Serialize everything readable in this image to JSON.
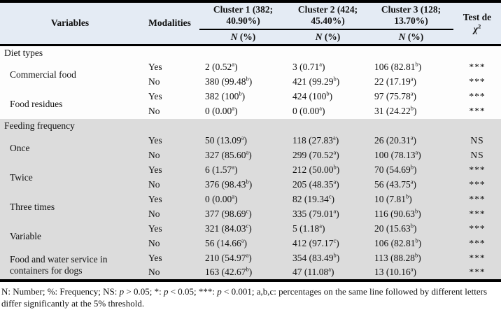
{
  "colors": {
    "header_bg": "#e4ebf4",
    "shaded_section_bg": "#dcdcdc",
    "row_bg": "#fdfdfd",
    "border": "#000000",
    "text": "#111111"
  },
  "table": {
    "header": {
      "variables": "Variables",
      "modalities": "Modalities",
      "clusters": [
        {
          "line1": "Cluster 1 (382;",
          "line2": "40.90%)"
        },
        {
          "line1": "Cluster 2 (424;",
          "line2": "45.40%)"
        },
        {
          "line1": "Cluster 3 (128;",
          "line2": "13.70%)"
        }
      ],
      "n_italic": "N",
      "n_rest": " (%)",
      "test_line1": "Test de",
      "test_chi": "χ",
      "test_chi_sup": "2"
    },
    "sections": [
      {
        "title": "Diet types",
        "shaded": false,
        "variables": [
          {
            "name": "Commercial food",
            "rows": [
              {
                "modality": "Yes",
                "c1": "2 (0.52^a)",
                "c2": "3 (0.71^a)",
                "c3": "106 (82.81^b)",
                "test": "***"
              },
              {
                "modality": "No",
                "c1": "380 (99.48^b)",
                "c2": "421 (99.29^b)",
                "c3": "22 (17.19^a)",
                "test": "***"
              }
            ]
          },
          {
            "name": "Food residues",
            "rows": [
              {
                "modality": "Yes",
                "c1": "382 (100^b)",
                "c2": "424 (100^b)",
                "c3": "97 (75.78^a)",
                "test": "***"
              },
              {
                "modality": "No",
                "c1": "0 (0.00^a)",
                "c2": "0 (0.00^a)",
                "c3": "31 (24.22^b)",
                "test": "***"
              }
            ]
          }
        ]
      },
      {
        "title": "Feeding frequency",
        "shaded": true,
        "variables": [
          {
            "name": "Once",
            "rows": [
              {
                "modality": "Yes",
                "c1": "50 (13.09^a)",
                "c2": "118 (27.83^a)",
                "c3": "26 (20.31^a)",
                "test": "NS"
              },
              {
                "modality": "No",
                "c1": "327 (85.60^a)",
                "c2": "299 (70.52^a)",
                "c3": "100 (78.13^a)",
                "test": "NS"
              }
            ]
          },
          {
            "name": "Twice",
            "rows": [
              {
                "modality": "Yes",
                "c1": "6 (1.57^a)",
                "c2": "212 (50.00^b)",
                "c3": "70 (54.69^b)",
                "test": "***"
              },
              {
                "modality": "No",
                "c1": "376 (98.43^b)",
                "c2": "205 (48.35^a)",
                "c3": "56 (43.75^a)",
                "test": "***"
              }
            ]
          },
          {
            "name": "Three times",
            "rows": [
              {
                "modality": "Yes",
                "c1": "0 (0.00^a)",
                "c2": "82 (19.34^c)",
                "c3": "10 (7.81^b)",
                "test": "***"
              },
              {
                "modality": "No",
                "c1": "377 (98.69^c)",
                "c2": "335 (79.01^a)",
                "c3": "116 (90.63^b)",
                "test": "***"
              }
            ]
          },
          {
            "name": "Variable",
            "rows": [
              {
                "modality": "Yes",
                "c1": "321 (84.03^c)",
                "c2": "5 (1.18^a)",
                "c3": "20 (15.63^b)",
                "test": "***"
              },
              {
                "modality": "No",
                "c1": "56 (14.66^a)",
                "c2": "412 (97.17^c)",
                "c3": "106 (82.81^b)",
                "test": "***"
              }
            ]
          },
          {
            "name": "Food and water service in containers for dogs",
            "rows": [
              {
                "modality": "Yes",
                "c1": "210 (54.97^a)",
                "c2": "354 (83.49^b)",
                "c3": "113 (88.28^b)",
                "test": "***"
              },
              {
                "modality": "No",
                "c1": "163 (42.67^b)",
                "c2": "47 (11.08^a)",
                "c3": "13 (10.16^a)",
                "test": "***"
              }
            ]
          }
        ]
      }
    ],
    "footnote": [
      {
        "t": "N: Number; %: Frequency; NS: "
      },
      {
        "t": "p",
        "i": true
      },
      {
        "t": " > 0.05; *: "
      },
      {
        "t": "p",
        "i": true
      },
      {
        "t": " < 0.05; ***: "
      },
      {
        "t": "p",
        "i": true
      },
      {
        "t": " < 0.001; a,b,c: percentages on the same line followed by different letters differ significantly at the 5% threshold."
      }
    ]
  }
}
